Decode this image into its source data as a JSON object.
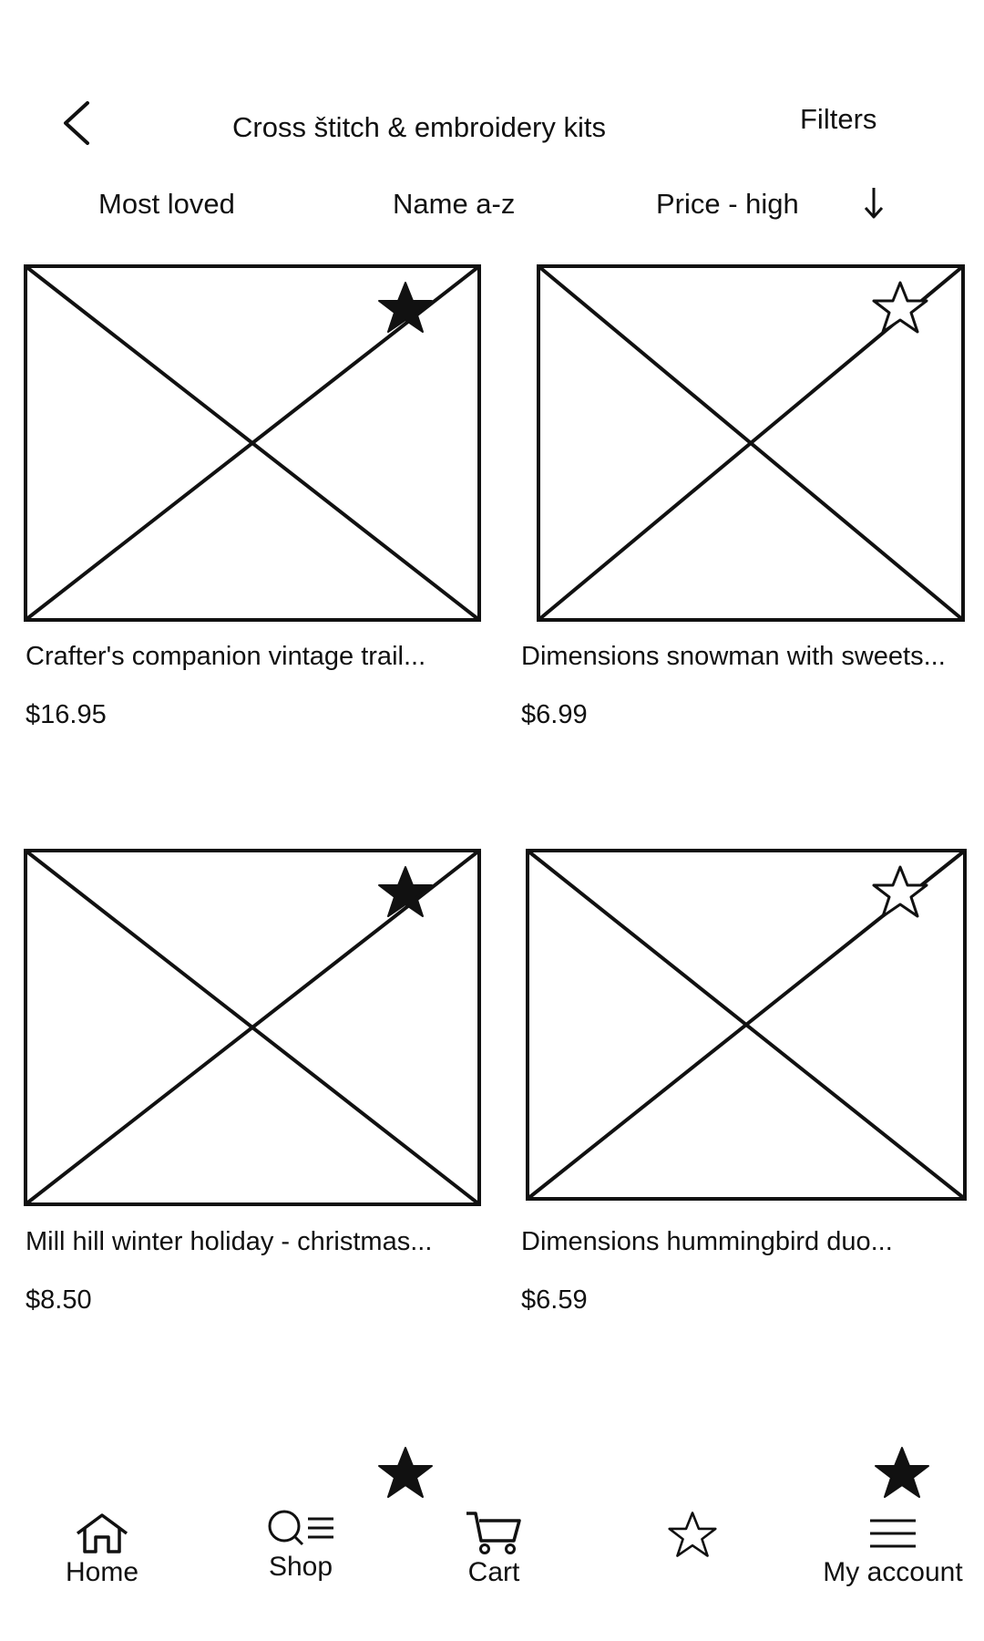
{
  "header": {
    "title": "Cross štitch & embroidery kits",
    "filters_label": "Filters",
    "back_icon": "chevron-left-icon"
  },
  "sort": {
    "options": [
      "Most loved",
      "Name a-z",
      "Price - high"
    ],
    "direction_icon": "arrow-down-icon"
  },
  "products": [
    {
      "name": "Crafter's companion vintage trail...",
      "price": "$16.95",
      "favorited": true,
      "image": "image-placeholder"
    },
    {
      "name": "Dimensions snowman with sweets...",
      "price": "$6.99",
      "favorited": false,
      "image": "image-placeholder"
    },
    {
      "name": "Mill hill winter holiday - christmas...",
      "price": "$8.50",
      "favorited": true,
      "image": "image-placeholder"
    },
    {
      "name": "Dimensions hummingbird duo...",
      "price": "$6.59",
      "favorited": false,
      "image": "image-placeholder"
    }
  ],
  "bottom_nav": {
    "items": [
      {
        "label": "Home",
        "icon": "home-icon"
      },
      {
        "label": "Shop",
        "icon": "search-menu-icon"
      },
      {
        "label": "Cart",
        "icon": "cart-icon"
      },
      {
        "label": "",
        "icon": "star-outline-icon"
      },
      {
        "label": "My account",
        "icon": "hamburger-menu-icon"
      }
    ]
  },
  "colors": {
    "ink": "#111111",
    "background": "#ffffff"
  }
}
